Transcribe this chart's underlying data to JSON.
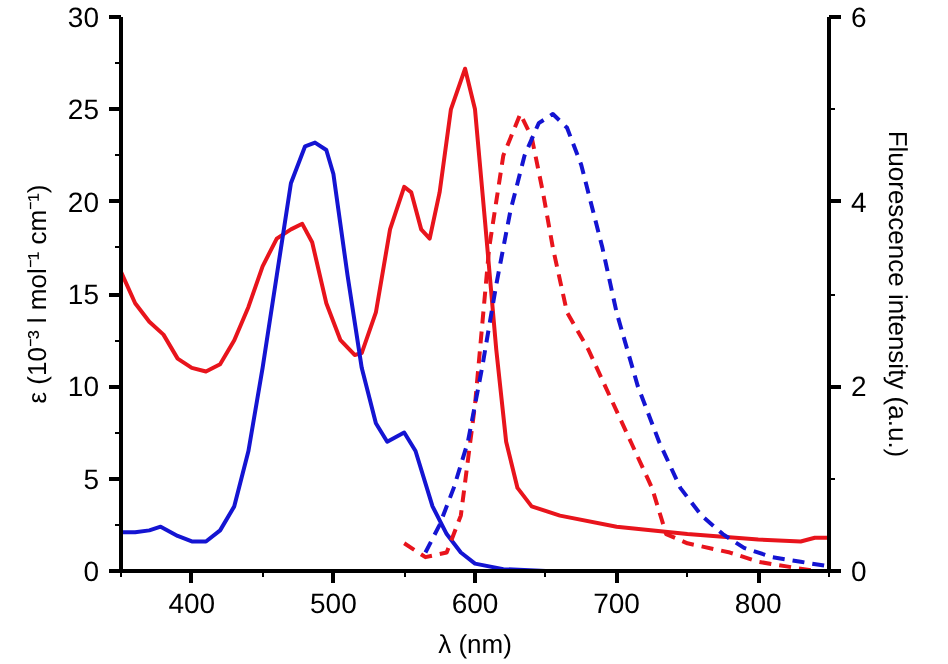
{
  "chart_data": {
    "type": "line",
    "xlabel": "λ (nm)",
    "ylabel": "ε (10⁻³ l mol⁻¹ cm⁻¹)",
    "y2label": "Fluorescence intensity (a.u.)",
    "xlim": [
      350,
      850
    ],
    "xticks": [
      400,
      500,
      600,
      700,
      800
    ],
    "ylim": [
      0,
      30
    ],
    "yticks": [
      0,
      5,
      10,
      15,
      20,
      25,
      30
    ],
    "y2lim": [
      0,
      6
    ],
    "y2ticks": [
      0,
      2,
      4,
      6
    ],
    "grid": false,
    "marker": "none",
    "series": [
      {
        "color": "#e8141c",
        "line_style": "solid",
        "x": [
          350,
          360,
          370,
          380,
          390,
          400,
          410,
          420,
          430,
          440,
          450,
          460,
          470,
          478,
          485,
          495,
          505,
          515,
          520,
          530,
          540,
          550,
          555,
          562,
          568,
          575,
          583,
          593,
          600,
          607,
          615,
          622,
          630,
          640,
          660,
          700,
          750,
          800,
          830,
          840,
          850
        ],
        "values": [
          16.2,
          14.5,
          13.5,
          12.8,
          11.5,
          11,
          10.8,
          11.2,
          12.5,
          14.3,
          16.5,
          18,
          18.5,
          18.8,
          17.8,
          14.5,
          12.5,
          11.7,
          11.8,
          14,
          18.5,
          20.8,
          20.5,
          18.5,
          18,
          20.5,
          25,
          27.2,
          25,
          19,
          12,
          7,
          4.5,
          3.5,
          3,
          2.4,
          2,
          1.7,
          1.6,
          1.8,
          1.8
        ]
      },
      {
        "color": "#1414d2",
        "line_style": "solid",
        "x": [
          350,
          360,
          370,
          378,
          390,
          400,
          410,
          420,
          430,
          440,
          450,
          460,
          470,
          480,
          487,
          495,
          500,
          510,
          520,
          530,
          538,
          550,
          558,
          570,
          580,
          590,
          600,
          620,
          650
        ],
        "values": [
          2.1,
          2.1,
          2.2,
          2.4,
          1.9,
          1.6,
          1.6,
          2.2,
          3.5,
          6.5,
          11,
          16,
          21,
          23,
          23.2,
          22.8,
          21.5,
          16,
          11,
          8,
          7,
          7.5,
          6.5,
          3.5,
          2,
          1,
          0.4,
          0.1,
          0
        ]
      },
      {
        "color": "#e8141c",
        "line_style": "dashed",
        "axis": "y2",
        "x": [
          550,
          565,
          580,
          590,
          600,
          610,
          620,
          632,
          640,
          648,
          655,
          665,
          680,
          695,
          710,
          725,
          735,
          750,
          780,
          800,
          820,
          840
        ],
        "values": [
          0.3,
          0.15,
          0.2,
          0.6,
          1.8,
          3.5,
          4.5,
          4.95,
          4.7,
          4.1,
          3.5,
          2.8,
          2.4,
          1.9,
          1.4,
          0.9,
          0.4,
          0.3,
          0.2,
          0.1,
          0.05,
          0
        ]
      },
      {
        "color": "#1414d2",
        "line_style": "dashed",
        "axis": "y2",
        "x": [
          565,
          575,
          585,
          595,
          605,
          615,
          625,
          635,
          645,
          655,
          665,
          675,
          690,
          700,
          715,
          730,
          745,
          760,
          775,
          790,
          810,
          830,
          850
        ],
        "values": [
          0.2,
          0.5,
          0.9,
          1.4,
          2.2,
          3.1,
          3.9,
          4.5,
          4.85,
          4.95,
          4.8,
          4.4,
          3.5,
          2.8,
          2.0,
          1.4,
          0.9,
          0.6,
          0.4,
          0.25,
          0.15,
          0.1,
          0.05
        ]
      }
    ]
  }
}
